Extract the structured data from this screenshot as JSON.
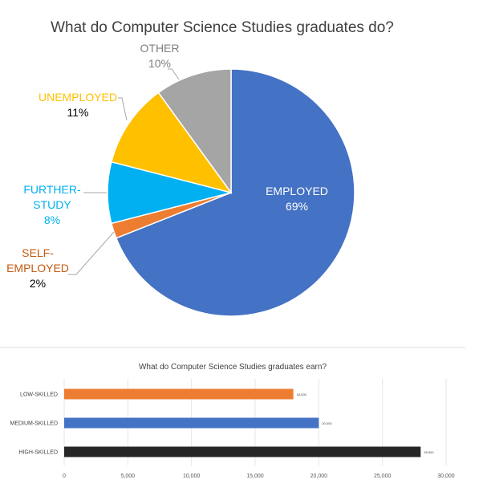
{
  "chart_data": [
    {
      "type": "pie",
      "title": "What do Computer Science Studies graduates do?",
      "categories": [
        "EMPLOYED",
        "SELF-EMPLOYED",
        "FURTHER-STUDY",
        "UNEMPLOYED",
        "OTHER"
      ],
      "values": [
        69,
        2,
        8,
        11,
        10
      ],
      "data_labels": [
        "69%",
        "2%",
        "8%",
        "11%",
        "10%"
      ],
      "colors": [
        "#4472C4",
        "#ED7D31",
        "#00B0F0",
        "#FFC000",
        "#A5A5A5"
      ],
      "label_colors": [
        "#FFFFFF",
        "#C55A11",
        "#00B0F0",
        "#FFC000",
        "#7F7F7F"
      ],
      "label_lines": [
        [
          "EMPLOYED"
        ],
        [
          "SELF-",
          "EMPLOYED"
        ],
        [
          "FURTHER-",
          "STUDY"
        ],
        [
          "UNEMPLOYED"
        ],
        [
          "OTHER"
        ]
      ],
      "value_colors": [
        "#FFFFFF",
        "#000000",
        "#00B0F0",
        "#000000",
        "#7F7F7F"
      ],
      "start_angle": "12 o'clock, clockwise"
    },
    {
      "type": "bar",
      "orientation": "horizontal",
      "title": "What do Computer Science Studies graduates earn?",
      "categories": [
        "LOW-SKILLED",
        "MEDIUM-SKILLED",
        "HIGH-SKILLED"
      ],
      "values": [
        18000,
        20000,
        28000
      ],
      "data_labels": [
        "18,000",
        "20,000",
        "28,000"
      ],
      "colors": [
        "#ED7D31",
        "#4472C4",
        "#262626"
      ],
      "xlim": [
        0,
        30000
      ],
      "xticks": [
        0,
        5000,
        10000,
        15000,
        20000,
        25000,
        30000
      ],
      "xtick_labels": [
        "0",
        "5,000",
        "10,000",
        "15,000",
        "20,000",
        "25,000",
        "30,000"
      ],
      "grid": true
    }
  ]
}
